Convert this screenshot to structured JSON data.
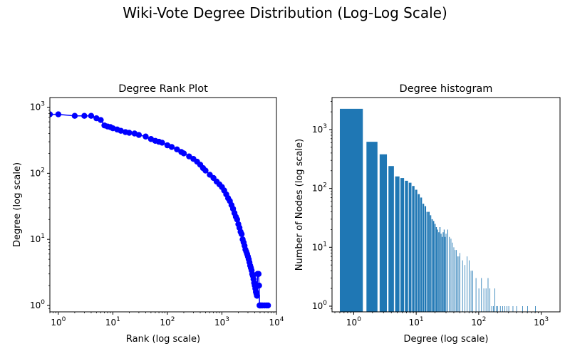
{
  "figure": {
    "title": "Wiki-Vote Degree Distribution (Log-Log Scale)"
  },
  "chart_data": [
    {
      "type": "line",
      "title": "Degree Rank Plot",
      "xlabel": "Rank (log scale)",
      "ylabel": "Degree (log scale)",
      "xscale": "log",
      "yscale": "log",
      "xlim": [
        0.7,
        10000
      ],
      "ylim": [
        0.8,
        1400
      ],
      "xticks": [
        1,
        10,
        100,
        1000,
        10000
      ],
      "xtick_labels": [
        "10^0",
        "10^1",
        "10^2",
        "10^3",
        "10^4"
      ],
      "yticks": [
        1,
        10,
        100,
        1000
      ],
      "ytick_labels": [
        "10^0",
        "10^1",
        "10^2",
        "10^3"
      ],
      "color": "#0000ff",
      "marker": "circle",
      "grid": false,
      "series": [
        {
          "x": [
            0.7,
            1,
            2,
            3,
            4,
            5,
            6,
            7,
            8,
            9,
            10,
            12,
            14,
            17,
            20,
            25,
            30,
            40,
            50,
            60,
            70,
            80,
            100,
            120,
            150,
            180,
            200,
            250,
            300,
            350,
            400,
            450,
            500,
            600,
            700,
            800,
            900,
            1000,
            1100,
            1200,
            1300,
            1400,
            1500,
            1600,
            1700,
            1800,
            1900,
            2000,
            2100,
            2200,
            2300,
            2400,
            2500,
            2600,
            2700,
            2800,
            2900,
            3000,
            3100,
            3200,
            3300,
            3400,
            3500,
            3600,
            3700,
            3800,
            3900,
            4000,
            4100,
            4200,
            4300,
            4400,
            4500,
            4600,
            4700,
            4800,
            4900,
            5000,
            5200,
            5500,
            6000,
            6500,
            7000
          ],
          "y": [
            780,
            780,
            740,
            740,
            740,
            680,
            640,
            530,
            510,
            500,
            480,
            460,
            440,
            420,
            410,
            400,
            380,
            360,
            330,
            310,
            300,
            290,
            265,
            250,
            230,
            210,
            200,
            180,
            165,
            150,
            135,
            120,
            110,
            95,
            85,
            75,
            68,
            62,
            55,
            48,
            42,
            38,
            33,
            29,
            25,
            22,
            20,
            17,
            15,
            13,
            12,
            10,
            9,
            8,
            7,
            6.5,
            6,
            5.5,
            5,
            4.5,
            4,
            3.7,
            3.4,
            3,
            2.8,
            2.5,
            2.2,
            2,
            1.8,
            1.6,
            1.5,
            1.4,
            3,
            3,
            3,
            2,
            1,
            1,
            1,
            1,
            1,
            1,
            1
          ]
        }
      ]
    },
    {
      "type": "bar",
      "title": "Degree histogram",
      "xlabel": "Degree (log scale)",
      "ylabel": "Number of Nodes (log scale)",
      "xscale": "log",
      "yscale": "log",
      "xlim": [
        0.45,
        2000
      ],
      "ylim": [
        0.8,
        3500
      ],
      "xticks": [
        1,
        10,
        100,
        1000
      ],
      "xtick_labels": [
        "10^0",
        "10^1",
        "10^2",
        "10^3"
      ],
      "yticks": [
        1,
        10,
        100,
        1000
      ],
      "ytick_labels": [
        "10^0",
        "10^1",
        "10^2",
        "10^3"
      ],
      "color": "#1f77b4",
      "grid": false,
      "bars": {
        "degree": [
          1,
          2,
          3,
          4,
          5,
          6,
          7,
          8,
          9,
          10,
          11,
          12,
          13,
          14,
          15,
          16,
          17,
          18,
          19,
          20,
          21,
          22,
          23,
          24,
          25,
          26,
          27,
          28,
          29,
          30,
          32,
          34,
          36,
          38,
          40,
          42,
          44,
          46,
          48,
          50,
          55,
          60,
          65,
          70,
          75,
          80,
          90,
          100,
          110,
          120,
          130,
          140,
          150,
          160,
          170,
          180,
          190,
          200,
          220,
          240,
          260,
          280,
          300,
          350,
          400,
          500,
          600,
          800
        ],
        "count": [
          2250,
          620,
          380,
          240,
          160,
          150,
          135,
          125,
          110,
          95,
          80,
          70,
          55,
          50,
          40,
          40,
          35,
          30,
          28,
          25,
          22,
          20,
          18,
          22,
          17,
          15,
          18,
          20,
          15,
          17,
          20,
          15,
          14,
          12,
          10,
          9,
          9,
          7,
          7,
          8,
          6,
          5,
          7,
          6,
          4,
          4,
          3,
          2,
          3,
          2,
          2,
          3,
          2,
          1,
          1,
          2,
          1,
          1,
          1,
          1,
          1,
          1,
          1,
          1,
          1,
          1,
          1,
          1
        ]
      }
    }
  ]
}
